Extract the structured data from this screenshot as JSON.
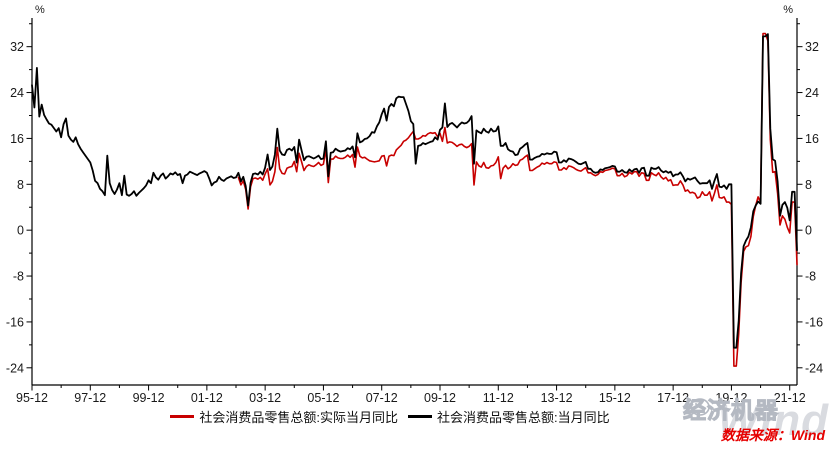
{
  "watermark": {
    "brand": "经济机器",
    "wind_text": "Wind"
  },
  "source": {
    "text": "数据来源：Wind",
    "color": "#e60000"
  },
  "chart_data": {
    "type": "line",
    "title": "",
    "xlabel": "",
    "ylabel_left": "%",
    "ylabel_right": "%",
    "percent_label": "%",
    "grid": false,
    "legend_position": "bottom-center",
    "x_unit": "month",
    "x_start": "1995-12",
    "x_end": "2022-03",
    "months_total": 316,
    "ylim": [
      -27,
      37
    ],
    "y_major_ticks": [
      -24,
      -16,
      -8,
      0,
      8,
      16,
      24,
      32
    ],
    "y_minor_step": 4,
    "x_tick_labels": [
      "95-12",
      "97-12",
      "99-12",
      "01-12",
      "03-12",
      "05-12",
      "07-12",
      "09-12",
      "11-12",
      "13-12",
      "15-12",
      "17-12",
      "19-12",
      "21-12"
    ],
    "x_tick_interval_months": 24,
    "series": [
      {
        "name": "社会消费品零售总额:实际当月同比",
        "color": "#c80000",
        "start_index": 85,
        "start_month": "2003-01",
        "values": [
          9.2,
          7.9,
          8.6,
          7.1,
          3.7,
          7.6,
          9.0,
          9.1,
          8.9,
          9.2,
          8.7,
          9.8,
          10.7,
          7.9,
          8.5,
          10.2,
          14.4,
          10.7,
          9.9,
          9.8,
          10.8,
          11.0,
          11.1,
          12.0,
          10.2,
          13.4,
          11.9,
          10.4,
          11.1,
          11.4,
          11.2,
          11.1,
          11.4,
          11.8,
          11.3,
          11.5,
          14.1,
          8.3,
          12.4,
          12.4,
          12.9,
          12.6,
          12.5,
          12.5,
          12.7,
          13.1,
          12.7,
          13.2,
          11.0,
          14.5,
          12.9,
          12.6,
          12.7,
          12.4,
          12.1,
          12.0,
          11.9,
          12.0,
          12.1,
          12.9,
          13.0,
          11.2,
          12.9,
          13.1,
          13.0,
          14.0,
          14.4,
          14.8,
          15.5,
          15.7,
          16.1,
          16.7,
          17.2,
          15.9,
          15.9,
          16.1,
          16.5,
          16.4,
          16.8,
          17.0,
          16.9,
          17.0,
          16.3,
          16.9,
          15.5,
          17.9,
          15.2,
          15.4,
          15.3,
          15.0,
          14.6,
          14.9,
          15.0,
          14.6,
          14.4,
          14.6,
          15.1,
          7.9,
          11.9,
          11.2,
          11.0,
          11.8,
          10.9,
          10.8,
          11.2,
          11.3,
          11.8,
          12.8,
          9.0,
          10.8,
          11.3,
          10.7,
          11.0,
          11.6,
          11.3,
          11.4,
          12.2,
          12.4,
          12.8,
          13.1,
          10.4,
          10.4,
          10.7,
          11.0,
          11.2,
          11.7,
          11.5,
          11.8,
          11.6,
          11.6,
          11.9,
          11.8,
          10.5,
          10.5,
          10.9,
          10.6,
          11.2,
          11.1,
          10.9,
          10.6,
          10.4,
          10.3,
          10.6,
          10.9,
          10.0,
          10.0,
          9.7,
          9.5,
          9.7,
          10.2,
          10.1,
          10.4,
          10.5,
          10.6,
          10.8,
          10.7,
          9.5,
          9.5,
          9.9,
          9.3,
          9.5,
          10.1,
          9.8,
          10.2,
          10.2,
          9.4,
          10.0,
          9.9,
          8.7,
          8.7,
          10.0,
          9.7,
          9.5,
          10.0,
          9.3,
          8.9,
          9.2,
          8.6,
          8.8,
          7.8,
          7.9,
          7.9,
          8.6,
          7.9,
          6.8,
          7.0,
          6.5,
          6.6,
          6.4,
          5.6,
          5.8,
          6.7,
          6.1,
          6.1,
          6.7,
          5.1,
          6.4,
          7.9,
          5.7,
          5.6,
          5.8,
          4.9,
          4.9,
          4.5,
          -23.7,
          -23.7,
          -18.1,
          -9.1,
          -3.7,
          -2.9,
          -2.7,
          -1.1,
          2.4,
          4.3,
          5.8,
          4.9,
          34.3,
          34.3,
          33.0,
          15.8,
          10.1,
          10.2,
          6.4,
          0.9,
          2.5,
          1.9,
          0.5,
          -0.5,
          4.9,
          4.9,
          -6.0
        ]
      },
      {
        "name": "社会消费品零售总额:当月同比",
        "color": "#000000",
        "start_index": 0,
        "start_month": "1995-12",
        "values": [
          25.3,
          21.4,
          28.3,
          19.8,
          21.9,
          20.1,
          19.3,
          18.6,
          18.4,
          17.8,
          17.2,
          17.8,
          16.2,
          18.5,
          19.5,
          16.5,
          15.8,
          15.4,
          16.2,
          15.0,
          14.2,
          13.6,
          13.0,
          12.4,
          11.8,
          10.4,
          8.6,
          8.2,
          7.2,
          6.8,
          6.1,
          13.0,
          8.2,
          7.0,
          6.3,
          7.1,
          8.2,
          6.1,
          9.5,
          6.2,
          6.0,
          6.3,
          6.8,
          6.0,
          6.5,
          6.9,
          7.3,
          7.8,
          8.7,
          8.2,
          10.0,
          9.2,
          8.8,
          9.5,
          9.9,
          9.0,
          9.4,
          9.9,
          9.7,
          10.1,
          9.6,
          9.8,
          8.2,
          9.5,
          9.7,
          10.2,
          10.0,
          9.8,
          9.6,
          9.9,
          10.1,
          10.3,
          10.0,
          9.0,
          7.8,
          8.3,
          8.5,
          9.3,
          8.8,
          8.6,
          9.0,
          9.2,
          9.4,
          9.1,
          9.2,
          10.0,
          8.5,
          9.3,
          7.7,
          4.3,
          8.3,
          9.8,
          9.9,
          9.7,
          10.2,
          9.7,
          10.9,
          13.2,
          10.5,
          11.1,
          13.2,
          17.7,
          13.9,
          13.2,
          13.1,
          14.0,
          14.2,
          13.9,
          14.5,
          11.8,
          15.8,
          13.9,
          12.2,
          12.8,
          12.9,
          12.7,
          12.5,
          12.7,
          13.0,
          12.4,
          12.5,
          15.5,
          9.4,
          13.5,
          13.6,
          14.2,
          13.9,
          13.7,
          13.8,
          13.9,
          14.3,
          14.1,
          14.6,
          12.7,
          16.9,
          15.3,
          15.5,
          15.9,
          16.0,
          16.4,
          17.1,
          17.0,
          18.1,
          18.8,
          20.2,
          21.2,
          19.1,
          21.5,
          22.0,
          21.6,
          23.0,
          23.3,
          23.2,
          23.2,
          22.0,
          20.8,
          19.0,
          18.5,
          11.6,
          14.7,
          14.8,
          15.2,
          15.0,
          15.2,
          15.4,
          15.5,
          16.2,
          15.8,
          17.5,
          17.9,
          22.1,
          18.0,
          18.5,
          18.7,
          18.3,
          17.9,
          18.4,
          18.8,
          18.6,
          18.7,
          19.1,
          19.9,
          11.6,
          17.4,
          17.1,
          16.9,
          17.7,
          17.2,
          17.0,
          17.7,
          17.2,
          17.3,
          18.1,
          14.7,
          14.7,
          15.2,
          14.1,
          13.8,
          13.7,
          13.1,
          13.2,
          14.2,
          14.5,
          14.9,
          15.2,
          12.3,
          12.3,
          12.6,
          12.8,
          12.9,
          13.3,
          13.2,
          13.4,
          13.3,
          13.3,
          13.7,
          13.6,
          11.8,
          11.8,
          12.2,
          11.9,
          12.5,
          12.4,
          12.2,
          11.9,
          11.6,
          11.5,
          11.7,
          11.9,
          10.7,
          10.7,
          10.2,
          10.0,
          10.1,
          10.6,
          10.5,
          10.8,
          10.9,
          11.0,
          11.2,
          11.1,
          10.2,
          10.2,
          10.5,
          10.1,
          10.0,
          10.6,
          10.2,
          10.6,
          10.7,
          10.0,
          10.8,
          10.9,
          9.5,
          9.5,
          10.9,
          10.7,
          10.7,
          11.0,
          10.4,
          10.1,
          10.3,
          10.0,
          10.2,
          9.4,
          9.7,
          9.7,
          10.1,
          9.4,
          8.5,
          9.0,
          8.8,
          9.0,
          9.2,
          8.6,
          8.1,
          8.2,
          8.2,
          8.2,
          8.7,
          7.2,
          8.6,
          9.8,
          7.6,
          7.5,
          7.8,
          7.2,
          8.0,
          8.0,
          -20.5,
          -20.5,
          -15.8,
          -7.5,
          -2.8,
          -1.8,
          -1.1,
          0.5,
          3.3,
          4.3,
          5.0,
          4.6,
          33.8,
          33.8,
          34.2,
          17.7,
          12.4,
          12.1,
          8.5,
          2.5,
          4.4,
          4.9,
          3.9,
          1.7,
          6.7,
          6.7,
          -3.5
        ]
      }
    ]
  }
}
